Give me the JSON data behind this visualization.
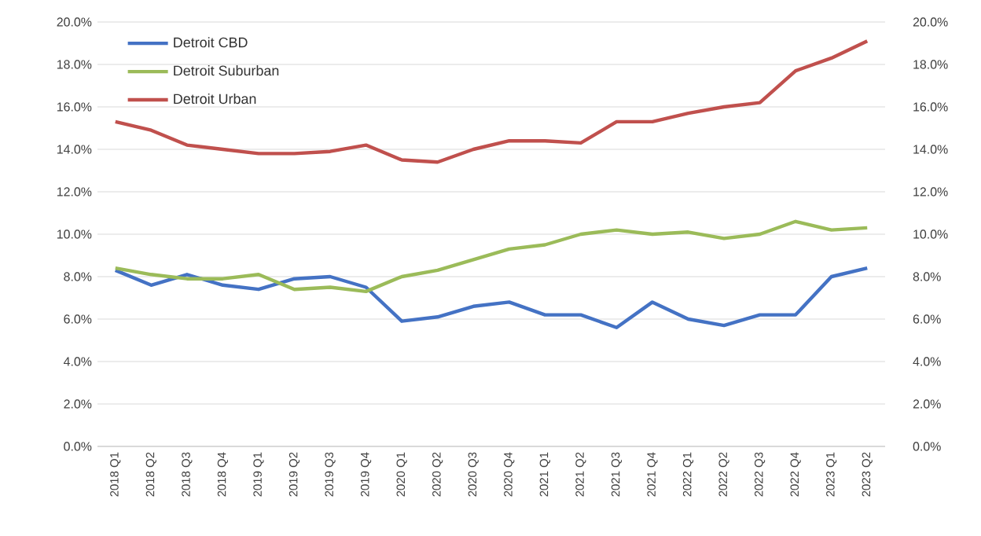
{
  "chart_data": {
    "type": "line",
    "categories": [
      "2018 Q1",
      "2018 Q2",
      "2018 Q3",
      "2018 Q4",
      "2019 Q1",
      "2019 Q2",
      "2019 Q3",
      "2019 Q4",
      "2020 Q1",
      "2020 Q2",
      "2020 Q3",
      "2020 Q4",
      "2021 Q1",
      "2021 Q2",
      "2021 Q3",
      "2021 Q4",
      "2022 Q1",
      "2022 Q2",
      "2022 Q3",
      "2022 Q4",
      "2023 Q1",
      "2023 Q2"
    ],
    "series": [
      {
        "name": "Detroit CBD",
        "color": "#4472c4",
        "values": [
          8.3,
          7.6,
          8.1,
          7.6,
          7.4,
          7.9,
          8.0,
          7.5,
          5.9,
          6.1,
          6.6,
          6.8,
          6.2,
          6.2,
          5.6,
          6.8,
          6.0,
          5.7,
          6.2,
          6.2,
          8.0,
          8.4
        ]
      },
      {
        "name": "Detroit Suburban",
        "color": "#9bbb59",
        "values": [
          8.4,
          8.1,
          7.9,
          7.9,
          8.1,
          7.4,
          7.5,
          7.3,
          8.0,
          8.3,
          8.8,
          9.3,
          9.5,
          10.0,
          10.2,
          10.0,
          10.1,
          9.8,
          10.0,
          10.6,
          10.2,
          10.3
        ]
      },
      {
        "name": "Detroit Urban",
        "color": "#c0504d",
        "values": [
          15.3,
          14.9,
          14.2,
          14.0,
          13.8,
          13.8,
          13.9,
          14.2,
          13.5,
          13.4,
          14.0,
          14.4,
          14.4,
          14.3,
          15.3,
          15.3,
          15.7,
          16.0,
          16.2,
          17.7,
          18.3,
          19.1
        ]
      }
    ],
    "ylim": [
      0,
      20
    ],
    "yticks": [
      {
        "value": 0,
        "label": "0.0%"
      },
      {
        "value": 2,
        "label": "2.0%"
      },
      {
        "value": 4,
        "label": "4.0%"
      },
      {
        "value": 6,
        "label": "6.0%"
      },
      {
        "value": 8,
        "label": "8.0%"
      },
      {
        "value": 10,
        "label": "10.0%"
      },
      {
        "value": 12,
        "label": "12.0%"
      },
      {
        "value": 14,
        "label": "14.0%"
      },
      {
        "value": 16,
        "label": "16.0%"
      },
      {
        "value": 18,
        "label": "18.0%"
      },
      {
        "value": 20,
        "label": "20.0%"
      }
    ],
    "y2lim": [
      0,
      20
    ],
    "y2ticks": [
      {
        "value": 0,
        "label": "0.0%"
      },
      {
        "value": 2,
        "label": "2.0%"
      },
      {
        "value": 4,
        "label": "4.0%"
      },
      {
        "value": 6,
        "label": "6.0%"
      },
      {
        "value": 8,
        "label": "8.0%"
      },
      {
        "value": 10,
        "label": "10.0%"
      },
      {
        "value": 12,
        "label": "12.0%"
      },
      {
        "value": 14,
        "label": "14.0%"
      },
      {
        "value": 16,
        "label": "16.0%"
      },
      {
        "value": 18,
        "label": "18.0%"
      },
      {
        "value": 20,
        "label": "20.0%"
      }
    ],
    "grid": "y",
    "legend": "top left",
    "marker": "none",
    "line_style": "solid"
  }
}
